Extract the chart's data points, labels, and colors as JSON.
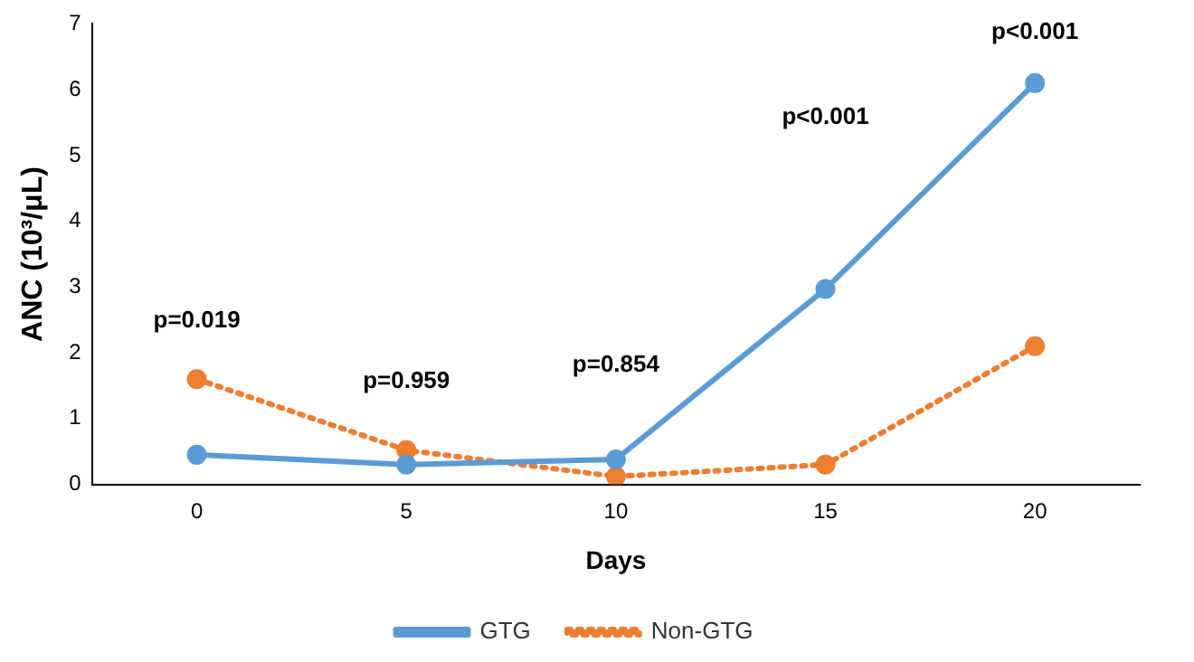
{
  "chart_data": {
    "type": "line",
    "xlabel": "Days",
    "ylabel": "ANC (10³/μL)",
    "categories": [
      "0",
      "5",
      "10",
      "15",
      "20"
    ],
    "series": [
      {
        "name": "GTG",
        "color": "#5b9bd5",
        "line_style": "solid",
        "values": [
          0.45,
          0.3,
          0.38,
          2.97,
          6.1
        ]
      },
      {
        "name": "Non-GTG",
        "color": "#ed7d31",
        "line_style": "dotted",
        "values": [
          1.6,
          0.52,
          0.12,
          0.3,
          2.1
        ]
      }
    ],
    "ylim": [
      0,
      7
    ],
    "yticks": [
      0,
      1,
      2,
      3,
      4,
      5,
      6,
      7
    ],
    "grid": false,
    "legend": "bottom",
    "marker": "circle",
    "annotations": [
      "p=0.019",
      "p=0.959",
      "p=0.854",
      "p<0.001",
      "p<0.001"
    ]
  }
}
